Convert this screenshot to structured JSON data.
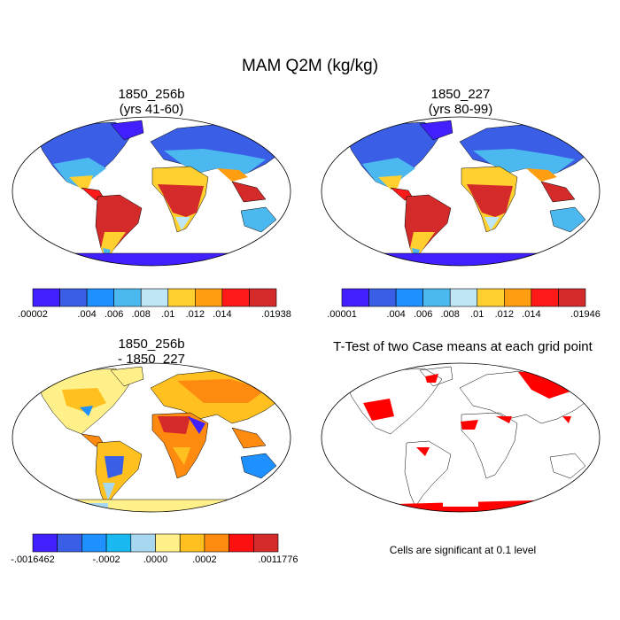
{
  "title": "MAM Q2M (kg/kg)",
  "panels": [
    {
      "title_line1": "1850_256b",
      "title_line2": "(yrs 41-60)"
    },
    {
      "title_line1": "1850_227",
      "title_line2": "(yrs 80-99)"
    },
    {
      "title_line1": "1850_256b",
      "title_line2": "- 1850_227"
    },
    {
      "title_line1": "T-Test of two Case means at each grid point",
      "title_line2": ""
    }
  ],
  "footnote": "Cells are significant at 0.1 level",
  "colorbars": [
    {
      "name": "colorbar-1850-256b",
      "colors": [
        "#4020ff",
        "#3a5ee6",
        "#1e90ff",
        "#4cb8f0",
        "#bfe6f5",
        "#ffd030",
        "#ff9e10",
        "#ff1a1a",
        "#d42a2a"
      ],
      "labels": [
        ".00002",
        ".004",
        ".006",
        ".008",
        ".01",
        ".012",
        ".014",
        ".01938"
      ],
      "label_boundaries": [
        0,
        2,
        3,
        4,
        5,
        6,
        7,
        9
      ]
    },
    {
      "name": "colorbar-1850-227",
      "colors": [
        "#4020ff",
        "#3a5ee6",
        "#1e90ff",
        "#4cb8f0",
        "#bfe6f5",
        "#ffd030",
        "#ff9e10",
        "#ff1a1a",
        "#d42a2a"
      ],
      "labels": [
        ".00001",
        ".004",
        ".006",
        ".008",
        ".01",
        ".012",
        ".014",
        ".01946"
      ],
      "label_boundaries": [
        0,
        2,
        3,
        4,
        5,
        6,
        7,
        9
      ]
    },
    {
      "name": "colorbar-difference",
      "colors": [
        "#4020ff",
        "#3a5ee6",
        "#1e90ff",
        "#1ab8f0",
        "#a8d8f0",
        "#fff08a",
        "#ffc020",
        "#ff8a10",
        "#ff1010",
        "#d42a2a"
      ],
      "labels": [
        "-.0016462",
        "-.0002",
        ".0000",
        ".0002",
        ".0011776"
      ],
      "label_boundaries": [
        0,
        3,
        5,
        7,
        10
      ]
    }
  ],
  "chart_data": [
    {
      "type": "heatmap",
      "subtitle": "1850_256b (yrs 41-60)",
      "variable": "Q2M",
      "units": "kg/kg",
      "season": "MAM",
      "range": [
        2e-05,
        0.01938
      ],
      "contour_levels": [
        0.004,
        0.006,
        0.008,
        0.01,
        0.012,
        0.014
      ],
      "zonal_pattern": {
        "polar": 2e-05,
        "midlat": 0.006,
        "subtropics": 0.01,
        "tropics": 0.019
      }
    },
    {
      "type": "heatmap",
      "subtitle": "1850_227 (yrs 80-99)",
      "variable": "Q2M",
      "units": "kg/kg",
      "season": "MAM",
      "range": [
        1e-05,
        0.01946
      ],
      "contour_levels": [
        0.004,
        0.006,
        0.008,
        0.01,
        0.012,
        0.014
      ],
      "zonal_pattern": {
        "polar": 1e-05,
        "midlat": 0.006,
        "subtropics": 0.01,
        "tropics": 0.019
      }
    },
    {
      "type": "heatmap",
      "subtitle": "1850_256b - 1850_227",
      "variable": "Q2M difference",
      "units": "kg/kg",
      "range": [
        -0.0016462,
        0.0011776
      ],
      "contour_levels": [
        -0.0002,
        0.0,
        0.0002
      ]
    },
    {
      "type": "heatmap",
      "subtitle": "T-Test of two Case means at each grid point",
      "significance_level": 0.1,
      "legend": "Cells are significant at 0.1 level"
    }
  ]
}
